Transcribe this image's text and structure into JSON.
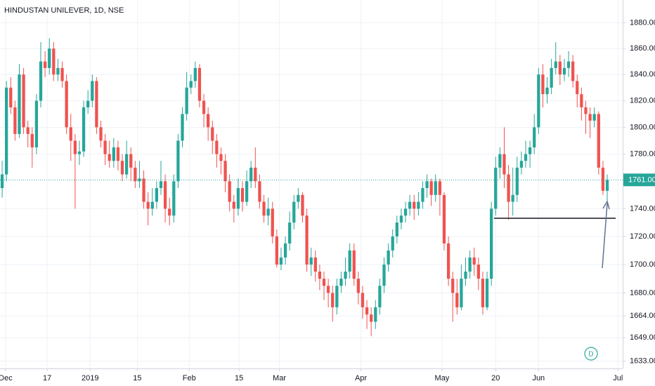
{
  "chart_data": {
    "type": "candlestick",
    "title": "HINDUSTAN UNILEVER, 1D, NSE",
    "log_scale": true,
    "grid": true,
    "up_color": "#26a69a",
    "down_color": "#ef5350",
    "xlim": [
      -0.5,
      144.6
    ],
    "xticks": [
      {
        "value": 0.8,
        "label": "Dec"
      },
      {
        "value": 10.5,
        "label": "17"
      },
      {
        "value": 20.5,
        "label": "2019"
      },
      {
        "value": 31.5,
        "label": "15"
      },
      {
        "value": 43.6,
        "label": "Feb"
      },
      {
        "value": 55.2,
        "label": "15"
      },
      {
        "value": 64.6,
        "label": "Mar"
      },
      {
        "value": 83.6,
        "label": "Apr"
      },
      {
        "value": 102.5,
        "label": "May"
      },
      {
        "value": 115,
        "label": "20"
      },
      {
        "value": 125,
        "label": "Jun"
      },
      {
        "value": 143.5,
        "label": "Jul"
      }
    ],
    "ylim": [
      1628,
      1898
    ],
    "yticks": [
      {
        "value": 1880,
        "label": "1880.00"
      },
      {
        "value": 1860,
        "label": "1860.00"
      },
      {
        "value": 1840,
        "label": "1840.00"
      },
      {
        "value": 1820,
        "label": "1820.00"
      },
      {
        "value": 1800,
        "label": "1800.00"
      },
      {
        "value": 1780,
        "label": "1780.00"
      },
      {
        "value": 1740,
        "label": "1740.00"
      },
      {
        "value": 1720,
        "label": "1720.00"
      },
      {
        "value": 1700,
        "label": "1700.00"
      },
      {
        "value": 1680,
        "label": "1680.00"
      },
      {
        "value": 1664,
        "label": "1664.00"
      },
      {
        "value": 1649,
        "label": "1649.00"
      },
      {
        "value": 1633,
        "label": "1633.00"
      }
    ],
    "last_price": {
      "value": 1761,
      "label": "1761.00"
    },
    "marker": "D",
    "open": [
      1755,
      1765,
      1830,
      1815,
      1795,
      1840,
      1800,
      1795,
      1785,
      1820,
      1850,
      1845,
      1860,
      1840,
      1845,
      1835,
      1800,
      1790,
      1780,
      1782,
      1815,
      1820,
      1835,
      1800,
      1790,
      1780,
      1775,
      1785,
      1775,
      1765,
      1780,
      1770,
      1760,
      1762,
      1745,
      1740,
      1745,
      1755,
      1760,
      1740,
      1735,
      1760,
      1790,
      1810,
      1830,
      1835,
      1845,
      1820,
      1810,
      1800,
      1790,
      1780,
      1775,
      1760,
      1745,
      1740,
      1755,
      1745,
      1760,
      1770,
      1760,
      1745,
      1735,
      1740,
      1720,
      1700,
      1705,
      1715,
      1730,
      1745,
      1750,
      1735,
      1700,
      1705,
      1695,
      1690,
      1685,
      1680,
      1670,
      1685,
      1690,
      1695,
      1710,
      1690,
      1680,
      1670,
      1665,
      1660,
      1670,
      1685,
      1700,
      1710,
      1720,
      1730,
      1735,
      1740,
      1745,
      1740,
      1745,
      1755,
      1760,
      1750,
      1760,
      1750,
      1715,
      1690,
      1680,
      1670,
      1690,
      1695,
      1705,
      1700,
      1690,
      1670,
      1690,
      1740,
      1770,
      1780,
      1765,
      1745,
      1750,
      1770,
      1775,
      1780,
      1785,
      1800,
      1840,
      1825,
      1830,
      1845,
      1850,
      1840,
      1845,
      1850,
      1835,
      1825,
      1815,
      1810,
      1805,
      1810,
      1770,
      1753
    ],
    "high": [
      1775,
      1835,
      1838,
      1820,
      1848,
      1845,
      1805,
      1800,
      1825,
      1865,
      1858,
      1868,
      1865,
      1852,
      1850,
      1840,
      1810,
      1795,
      1790,
      1820,
      1828,
      1840,
      1838,
      1805,
      1795,
      1790,
      1792,
      1790,
      1780,
      1790,
      1785,
      1775,
      1775,
      1768,
      1752,
      1755,
      1760,
      1775,
      1765,
      1748,
      1765,
      1795,
      1815,
      1842,
      1840,
      1850,
      1848,
      1825,
      1815,
      1805,
      1795,
      1785,
      1780,
      1765,
      1750,
      1762,
      1760,
      1768,
      1775,
      1785,
      1765,
      1750,
      1748,
      1745,
      1725,
      1712,
      1720,
      1738,
      1750,
      1755,
      1752,
      1740,
      1712,
      1710,
      1700,
      1695,
      1690,
      1685,
      1690,
      1695,
      1705,
      1715,
      1715,
      1695,
      1685,
      1675,
      1670,
      1675,
      1690,
      1705,
      1715,
      1725,
      1735,
      1740,
      1745,
      1750,
      1750,
      1752,
      1760,
      1765,
      1762,
      1765,
      1762,
      1752,
      1720,
      1695,
      1690,
      1700,
      1705,
      1710,
      1712,
      1705,
      1695,
      1695,
      1745,
      1778,
      1785,
      1800,
      1772,
      1770,
      1778,
      1782,
      1790,
      1790,
      1810,
      1845,
      1848,
      1838,
      1852,
      1865,
      1855,
      1852,
      1858,
      1855,
      1840,
      1830,
      1820,
      1815,
      1815,
      1812,
      1775,
      1765
    ],
    "low": [
      1748,
      1760,
      1810,
      1790,
      1792,
      1795,
      1785,
      1770,
      1780,
      1815,
      1838,
      1840,
      1835,
      1835,
      1830,
      1795,
      1775,
      1740,
      1772,
      1778,
      1810,
      1815,
      1795,
      1785,
      1772,
      1770,
      1770,
      1768,
      1760,
      1762,
      1760,
      1755,
      1755,
      1740,
      1728,
      1735,
      1740,
      1750,
      1730,
      1728,
      1730,
      1755,
      1785,
      1805,
      1825,
      1830,
      1815,
      1800,
      1790,
      1780,
      1770,
      1765,
      1752,
      1738,
      1730,
      1735,
      1738,
      1742,
      1755,
      1755,
      1740,
      1730,
      1728,
      1715,
      1698,
      1696,
      1700,
      1710,
      1725,
      1740,
      1730,
      1695,
      1692,
      1688,
      1682,
      1675,
      1670,
      1660,
      1665,
      1680,
      1685,
      1690,
      1685,
      1672,
      1662,
      1655,
      1650,
      1655,
      1665,
      1680,
      1695,
      1705,
      1715,
      1725,
      1730,
      1735,
      1732,
      1735,
      1740,
      1748,
      1742,
      1745,
      1735,
      1710,
      1685,
      1660,
      1665,
      1668,
      1685,
      1690,
      1692,
      1682,
      1665,
      1668,
      1685,
      1735,
      1762,
      1755,
      1732,
      1735,
      1745,
      1765,
      1770,
      1770,
      1780,
      1795,
      1815,
      1818,
      1825,
      1840,
      1832,
      1835,
      1838,
      1830,
      1815,
      1805,
      1795,
      1792,
      1800,
      1765,
      1750,
      1745
    ],
    "close": [
      1765,
      1830,
      1815,
      1795,
      1840,
      1800,
      1795,
      1785,
      1820,
      1850,
      1845,
      1860,
      1840,
      1845,
      1835,
      1800,
      1790,
      1780,
      1782,
      1815,
      1820,
      1835,
      1800,
      1790,
      1780,
      1775,
      1785,
      1775,
      1765,
      1780,
      1770,
      1760,
      1762,
      1745,
      1740,
      1745,
      1755,
      1760,
      1740,
      1735,
      1760,
      1790,
      1810,
      1830,
      1835,
      1845,
      1820,
      1810,
      1800,
      1790,
      1780,
      1775,
      1760,
      1745,
      1740,
      1755,
      1745,
      1760,
      1770,
      1760,
      1745,
      1735,
      1740,
      1720,
      1700,
      1705,
      1715,
      1730,
      1745,
      1750,
      1735,
      1700,
      1705,
      1695,
      1690,
      1685,
      1680,
      1670,
      1685,
      1690,
      1695,
      1710,
      1690,
      1680,
      1670,
      1665,
      1660,
      1670,
      1685,
      1700,
      1710,
      1720,
      1730,
      1735,
      1740,
      1745,
      1740,
      1745,
      1755,
      1760,
      1750,
      1760,
      1750,
      1715,
      1690,
      1680,
      1670,
      1690,
      1695,
      1705,
      1700,
      1690,
      1670,
      1690,
      1740,
      1770,
      1780,
      1765,
      1745,
      1750,
      1770,
      1775,
      1780,
      1785,
      1800,
      1840,
      1825,
      1830,
      1845,
      1850,
      1840,
      1845,
      1850,
      1835,
      1825,
      1815,
      1810,
      1805,
      1810,
      1770,
      1753,
      1761
    ]
  }
}
